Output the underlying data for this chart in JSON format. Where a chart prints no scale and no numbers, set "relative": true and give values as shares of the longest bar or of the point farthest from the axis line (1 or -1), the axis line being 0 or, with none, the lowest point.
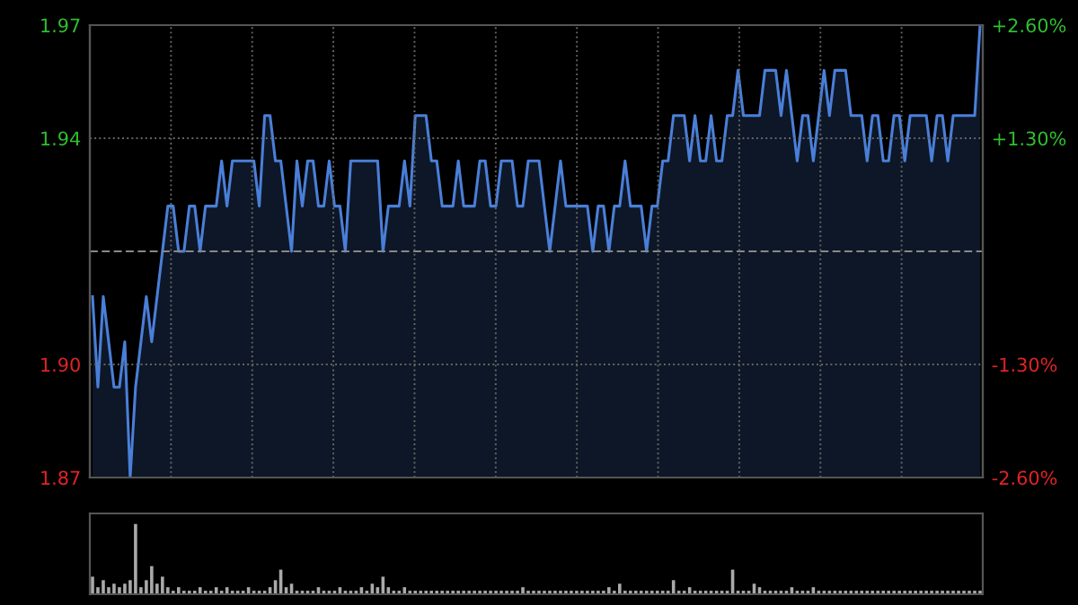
{
  "chart_data": [
    {
      "type": "area",
      "categories": [
        null,
        null,
        null,
        null,
        null,
        null,
        null,
        null,
        null,
        null,
        null,
        null,
        null,
        null,
        null,
        null,
        null,
        null,
        null,
        null,
        null,
        null,
        null,
        null,
        null,
        null,
        null,
        null,
        null,
        null,
        null,
        null,
        null,
        null,
        null,
        null,
        null,
        null,
        null,
        null,
        null,
        null,
        null,
        null,
        null,
        null,
        null,
        null,
        null,
        null,
        null,
        null,
        null,
        null,
        null,
        null,
        null,
        null,
        null,
        null,
        null,
        null,
        null,
        null,
        null,
        null,
        null,
        null,
        null,
        null,
        null,
        null,
        null,
        null,
        null,
        null,
        null,
        null,
        null,
        null,
        null,
        null,
        null,
        null,
        null,
        null,
        null,
        null,
        null,
        null,
        null,
        null,
        null,
        null,
        null,
        null,
        null,
        null,
        null,
        null,
        null,
        null,
        null,
        null,
        null,
        null,
        null,
        null,
        null,
        null,
        null,
        null,
        null,
        null,
        null,
        null,
        null,
        null,
        null,
        null,
        null,
        null,
        null,
        null,
        null,
        null,
        null,
        null,
        null,
        null,
        null,
        null,
        null,
        null,
        null,
        null,
        null,
        null,
        null,
        null,
        null,
        null,
        null,
        null,
        null,
        null,
        null,
        null,
        null,
        null,
        null,
        null,
        null,
        null,
        null,
        null,
        null,
        null,
        null,
        null,
        null,
        null,
        null,
        null,
        null,
        null
      ],
      "series": [
        {
          "color": "#4a7fd8",
          "values": [
            1.91,
            1.89,
            1.91,
            1.9,
            1.89,
            1.89,
            1.9,
            1.87,
            1.89,
            1.9,
            1.91,
            1.9,
            1.91,
            1.92,
            1.93,
            1.93,
            1.92,
            1.92,
            1.93,
            1.93,
            1.92,
            1.93,
            1.93,
            1.93,
            1.94,
            1.93,
            1.94,
            1.94,
            1.94,
            1.94,
            1.94,
            1.93,
            1.95,
            1.95,
            1.94,
            1.94,
            1.93,
            1.92,
            1.94,
            1.93,
            1.94,
            1.94,
            1.93,
            1.93,
            1.94,
            1.93,
            1.93,
            1.92,
            1.94,
            1.94,
            1.94,
            1.94,
            1.94,
            1.94,
            1.92,
            1.93,
            1.93,
            1.93,
            1.94,
            1.93,
            1.95,
            1.95,
            1.95,
            1.94,
            1.94,
            1.93,
            1.93,
            1.93,
            1.94,
            1.93,
            1.93,
            1.93,
            1.94,
            1.94,
            1.93,
            1.93,
            1.94,
            1.94,
            1.94,
            1.93,
            1.93,
            1.94,
            1.94,
            1.94,
            1.93,
            1.92,
            1.93,
            1.94,
            1.93,
            1.93,
            1.93,
            1.93,
            1.93,
            1.92,
            1.93,
            1.93,
            1.92,
            1.93,
            1.93,
            1.94,
            1.93,
            1.93,
            1.93,
            1.92,
            1.93,
            1.93,
            1.94,
            1.94,
            1.95,
            1.95,
            1.95,
            1.94,
            1.95,
            1.94,
            1.94,
            1.95,
            1.94,
            1.94,
            1.95,
            1.95,
            1.96,
            1.95,
            1.95,
            1.95,
            1.95,
            1.96,
            1.96,
            1.96,
            1.95,
            1.96,
            1.95,
            1.94,
            1.95,
            1.95,
            1.94,
            1.95,
            1.96,
            1.95,
            1.96,
            1.96,
            1.96,
            1.95,
            1.95,
            1.95,
            1.94,
            1.95,
            1.95,
            1.94,
            1.94,
            1.95,
            1.95,
            1.94,
            1.95,
            1.95,
            1.95,
            1.95,
            1.94,
            1.95,
            1.95,
            1.94,
            1.95,
            1.95,
            1.95,
            1.95,
            1.95,
            1.97
          ]
        }
      ],
      "ylim": [
        1.87,
        1.97
      ],
      "yticks": [
        {
          "value": 1.97,
          "label": "1.97"
        },
        {
          "value": 1.945,
          "label": "1.94"
        },
        {
          "value": 1.895,
          "label": "1.90"
        },
        {
          "value": 1.87,
          "label": "1.87"
        }
      ],
      "y2lim": [
        -2.6,
        2.6
      ],
      "y2ticks": [
        {
          "value": 2.6,
          "label": "+2.60%"
        },
        {
          "value": 1.3,
          "label": "+1.30%"
        },
        {
          "value": -1.3,
          "label": "-1.30%"
        },
        {
          "value": -2.6,
          "label": "-2.60%"
        }
      ],
      "ref_lines": [
        {
          "axis": "y",
          "value": 1.92,
          "color": "#888888",
          "line_style": "dashed"
        }
      ],
      "grid": true,
      "marker": "none",
      "line_style": "solid"
    },
    {
      "type": "bar",
      "relative": true,
      "color": "#aaaaaa",
      "categories": [
        null,
        null,
        null,
        null,
        null,
        null,
        null,
        null,
        null,
        null,
        null,
        null,
        null,
        null,
        null,
        null,
        null,
        null,
        null,
        null,
        null,
        null,
        null,
        null,
        null,
        null,
        null,
        null,
        null,
        null,
        null,
        null,
        null,
        null,
        null,
        null,
        null,
        null,
        null,
        null,
        null,
        null,
        null,
        null,
        null,
        null,
        null,
        null,
        null,
        null,
        null,
        null,
        null,
        null,
        null,
        null,
        null,
        null,
        null,
        null,
        null,
        null,
        null,
        null,
        null,
        null,
        null,
        null,
        null,
        null,
        null,
        null,
        null,
        null,
        null,
        null,
        null,
        null,
        null,
        null,
        null,
        null,
        null,
        null,
        null,
        null,
        null,
        null,
        null,
        null,
        null,
        null,
        null,
        null,
        null,
        null,
        null,
        null,
        null,
        null,
        null,
        null,
        null,
        null,
        null,
        null,
        null,
        null,
        null,
        null,
        null,
        null,
        null,
        null,
        null,
        null,
        null,
        null,
        null,
        null,
        null,
        null,
        null,
        null,
        null,
        null,
        null,
        null,
        null,
        null,
        null,
        null,
        null,
        null,
        null,
        null,
        null,
        null,
        null,
        null,
        null,
        null,
        null,
        null,
        null,
        null,
        null,
        null,
        null,
        null,
        null,
        null,
        null,
        null,
        null,
        null,
        null,
        null,
        null,
        null,
        null,
        null,
        null,
        null,
        null,
        null
      ],
      "values": [
        0.25,
        0.1,
        0.2,
        0.1,
        0.15,
        0.1,
        0.15,
        0.2,
        1,
        0.1,
        0.2,
        0.4,
        0.15,
        0.25,
        0.1,
        0.05,
        0.1,
        0.05,
        0.05,
        0.05,
        0.1,
        0.05,
        0.05,
        0.1,
        0.05,
        0.1,
        0.05,
        0.05,
        0.05,
        0.1,
        0.05,
        0.05,
        0.05,
        0.1,
        0.2,
        0.35,
        0.1,
        0.15,
        0.05,
        0.05,
        0.05,
        0.05,
        0.1,
        0.05,
        0.05,
        0.05,
        0.1,
        0.05,
        0.05,
        0.05,
        0.1,
        0.05,
        0.15,
        0.1,
        0.25,
        0.1,
        0.05,
        0.05,
        0.1,
        0.05,
        0.05,
        0.05,
        0.05,
        0.05,
        0.05,
        0.05,
        0.05,
        0.05,
        0.05,
        0.05,
        0.05,
        0.05,
        0.05,
        0.05,
        0.05,
        0.05,
        0.05,
        0.05,
        0.05,
        0.05,
        0.1,
        0.05,
        0.05,
        0.05,
        0.05,
        0.05,
        0.05,
        0.05,
        0.05,
        0.05,
        0.05,
        0.05,
        0.05,
        0.05,
        0.05,
        0.05,
        0.1,
        0.05,
        0.15,
        0.05,
        0.05,
        0.05,
        0.05,
        0.05,
        0.05,
        0.05,
        0.05,
        0.05,
        0.2,
        0.05,
        0.05,
        0.1,
        0.05,
        0.05,
        0.05,
        0.05,
        0.05,
        0.05,
        0.05,
        0.35,
        0.05,
        0.05,
        0.05,
        0.15,
        0.1,
        0.05,
        0.05,
        0.05,
        0.05,
        0.05,
        0.1,
        0.05,
        0.05,
        0.05,
        0.1,
        0.05,
        0.05,
        0.05,
        0.05,
        0.05,
        0.05,
        0.05,
        0.05,
        0.05,
        0.05,
        0.05,
        0.05,
        0.05,
        0.05,
        0.05,
        0.05,
        0.05,
        0.05,
        0.05,
        0.05,
        0.05,
        0.05,
        0.05,
        0.05,
        0.05,
        0.05,
        0.05,
        0.05,
        0.05,
        0.05,
        0.05
      ]
    }
  ]
}
